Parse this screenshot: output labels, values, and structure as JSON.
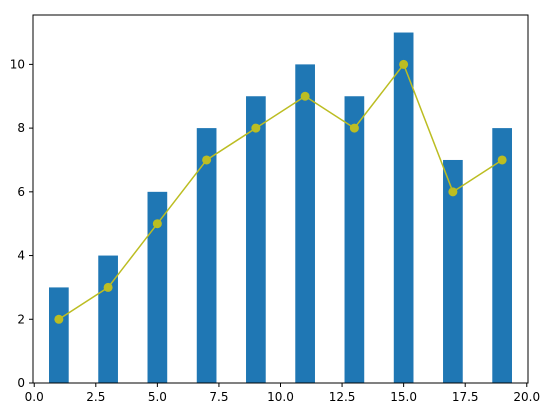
{
  "chart_data": {
    "type": "bar",
    "title": "",
    "xlabel": "",
    "ylabel": "",
    "xlim": [
      -0.05,
      20.05
    ],
    "ylim": [
      0,
      11.55
    ],
    "grid": false,
    "xticks": [
      0.0,
      2.5,
      5.0,
      7.5,
      10.0,
      12.5,
      15.0,
      17.5,
      20.0
    ],
    "xtick_labels": [
      "0.0",
      "2.5",
      "5.0",
      "7.5",
      "10.0",
      "12.5",
      "15.0",
      "17.5",
      "20.0"
    ],
    "yticks": [
      0,
      2,
      4,
      6,
      8,
      10
    ],
    "ytick_labels": [
      "0",
      "2",
      "4",
      "6",
      "8",
      "10"
    ],
    "bar_width": 0.8,
    "series": [
      {
        "type": "bar",
        "color": "#1f77b4",
        "x": [
          1,
          3,
          5,
          7,
          9,
          11,
          13,
          15,
          17,
          19
        ],
        "values": [
          3,
          4,
          6,
          8,
          9,
          10,
          9,
          11,
          7,
          8
        ]
      },
      {
        "type": "line",
        "color": "#bcbd22",
        "marker": "circle",
        "x": [
          1,
          3,
          5,
          7,
          9,
          11,
          13,
          15,
          17,
          19
        ],
        "values": [
          2,
          3,
          5,
          7,
          8,
          9,
          8,
          10,
          6,
          7
        ]
      }
    ]
  }
}
